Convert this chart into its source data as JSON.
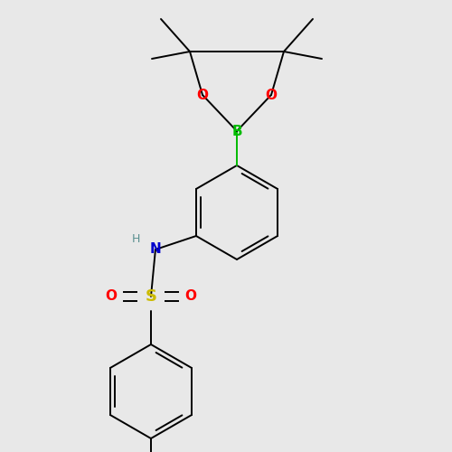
{
  "background_color": "#e8e8e8",
  "bond_color": "#000000",
  "bond_width": 1.4,
  "atom_colors": {
    "B": "#00bb00",
    "O": "#ff0000",
    "N": "#0000cc",
    "S": "#ccbb00",
    "H": "#5a9090"
  },
  "figsize": [
    5.0,
    5.0
  ],
  "dpi": 100
}
